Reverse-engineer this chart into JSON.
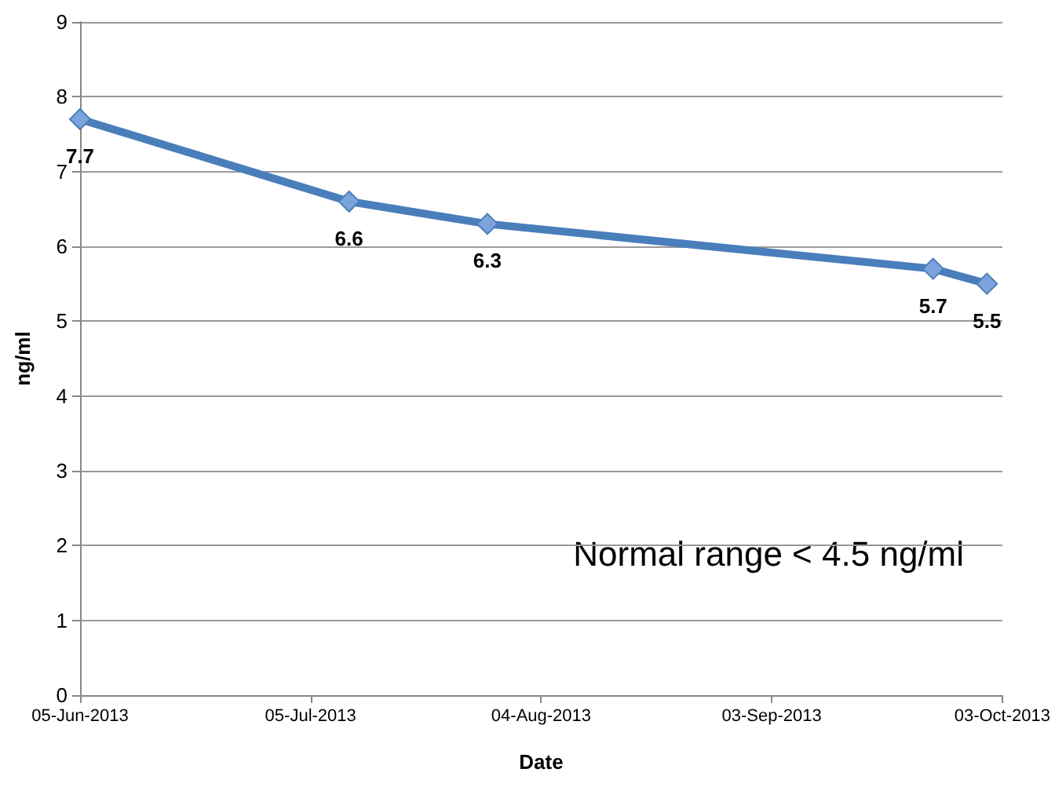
{
  "chart_data": {
    "type": "line",
    "xlabel": "Date",
    "ylabel": "ng/ml",
    "x": [
      "2013-06-05",
      "2013-07-10",
      "2013-07-28",
      "2013-09-24",
      "2013-10-01"
    ],
    "series": [
      {
        "color": "#4a7ebb",
        "values": [
          7.7,
          6.6,
          6.3,
          5.7,
          5.5
        ]
      }
    ],
    "xlim": [
      "2013-06-05",
      "2013-10-03"
    ],
    "xticks": [
      {
        "value": "2013-06-05",
        "label": "05-Jun-2013"
      },
      {
        "value": "2013-07-05",
        "label": "05-Jul-2013"
      },
      {
        "value": "2013-08-04",
        "label": "04-Aug-2013"
      },
      {
        "value": "2013-09-03",
        "label": "03-Sep-2013"
      },
      {
        "value": "2013-10-03",
        "label": "03-Oct-2013"
      }
    ],
    "ylim": [
      0,
      9
    ],
    "yticks": [
      0,
      1,
      2,
      3,
      4,
      5,
      6,
      7,
      8,
      9
    ],
    "grid": "y",
    "marker": "diamond",
    "line_style": "solid",
    "data_labels": true,
    "annotations": [
      "Normal range < 4.5 ng/ml"
    ]
  }
}
